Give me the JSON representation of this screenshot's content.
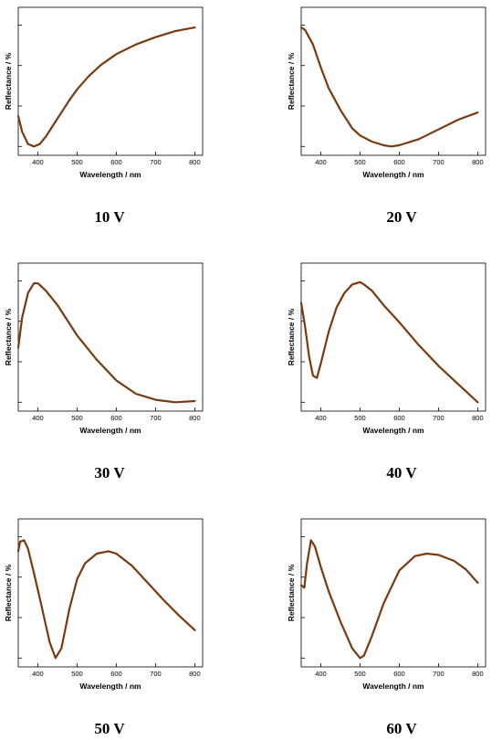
{
  "colors": {
    "curve": "#7a3a10",
    "axis": "#000000"
  },
  "chart_data": [
    {
      "type": "line",
      "caption": "10 V",
      "xlabel": "Wavelength / nm",
      "ylabel": "Reflectance / %",
      "xlim": [
        350,
        820
      ],
      "ylim": [
        0,
        1
      ],
      "xticks": [
        400,
        500,
        600,
        700,
        800
      ],
      "yticks_unlabeled": 4,
      "grid": false,
      "series": [
        {
          "x": [
            350,
            360,
            375,
            390,
            405,
            420,
            440,
            460,
            480,
            500,
            530,
            560,
            600,
            650,
            700,
            750,
            800
          ],
          "y": [
            0.25,
            0.12,
            0.02,
            0.0,
            0.02,
            0.08,
            0.18,
            0.28,
            0.38,
            0.47,
            0.58,
            0.67,
            0.76,
            0.84,
            0.9,
            0.95,
            0.98
          ]
        }
      ]
    },
    {
      "type": "line",
      "caption": "20 V",
      "xlabel": "Wavelength / nm",
      "ylabel": "Reflectance / %",
      "xlim": [
        350,
        820
      ],
      "ylim": [
        0,
        1
      ],
      "xticks": [
        400,
        500,
        600,
        700,
        800
      ],
      "yticks_unlabeled": 4,
      "grid": false,
      "series": [
        {
          "x": [
            350,
            360,
            380,
            400,
            420,
            450,
            480,
            500,
            530,
            560,
            580,
            600,
            650,
            700,
            750,
            800
          ],
          "y": [
            0.98,
            0.96,
            0.84,
            0.65,
            0.48,
            0.3,
            0.15,
            0.09,
            0.04,
            0.01,
            0.0,
            0.01,
            0.06,
            0.14,
            0.22,
            0.28
          ]
        }
      ]
    },
    {
      "type": "line",
      "caption": "30 V",
      "xlabel": "Wavelength / nm",
      "ylabel": "Reflectance / %",
      "xlim": [
        350,
        820
      ],
      "ylim": [
        0,
        1
      ],
      "xticks": [
        400,
        500,
        600,
        700,
        800
      ],
      "yticks_unlabeled": 4,
      "grid": false,
      "series": [
        {
          "x": [
            350,
            360,
            375,
            390,
            400,
            420,
            450,
            480,
            500,
            550,
            600,
            650,
            700,
            750,
            800
          ],
          "y": [
            0.45,
            0.7,
            0.9,
            0.98,
            0.98,
            0.92,
            0.8,
            0.65,
            0.55,
            0.35,
            0.18,
            0.07,
            0.02,
            0.0,
            0.01
          ]
        }
      ]
    },
    {
      "type": "line",
      "caption": "40 V",
      "xlabel": "Wavelength / nm",
      "ylabel": "Reflectance / %",
      "xlim": [
        350,
        820
      ],
      "ylim": [
        0,
        1
      ],
      "xticks": [
        400,
        500,
        600,
        700,
        800
      ],
      "yticks_unlabeled": 4,
      "grid": false,
      "series": [
        {
          "x": [
            350,
            360,
            370,
            380,
            390,
            400,
            420,
            440,
            460,
            480,
            500,
            510,
            530,
            560,
            600,
            650,
            700,
            750,
            800
          ],
          "y": [
            0.82,
            0.62,
            0.38,
            0.22,
            0.2,
            0.32,
            0.58,
            0.78,
            0.9,
            0.97,
            0.99,
            0.97,
            0.92,
            0.8,
            0.66,
            0.47,
            0.3,
            0.15,
            0.0
          ]
        }
      ]
    },
    {
      "type": "line",
      "caption": "50 V",
      "xlabel": "Wavelength / nm",
      "ylabel": "Reflectance / %",
      "xlim": [
        350,
        820
      ],
      "ylim": [
        0,
        1
      ],
      "xticks": [
        400,
        500,
        600,
        700,
        800
      ],
      "yticks_unlabeled": 4,
      "grid": false,
      "series": [
        {
          "x": [
            350,
            355,
            365,
            375,
            390,
            410,
            430,
            445,
            460,
            480,
            500,
            520,
            550,
            580,
            600,
            640,
            680,
            720,
            760,
            800
          ],
          "y": [
            0.88,
            0.96,
            0.97,
            0.9,
            0.7,
            0.42,
            0.13,
            0.0,
            0.08,
            0.4,
            0.65,
            0.78,
            0.86,
            0.88,
            0.86,
            0.76,
            0.62,
            0.48,
            0.35,
            0.23
          ]
        }
      ]
    },
    {
      "type": "line",
      "caption": "60 V",
      "xlabel": "Wavelength / nm",
      "ylabel": "Reflectance / %",
      "xlim": [
        350,
        820
      ],
      "ylim": [
        0,
        1
      ],
      "xticks": [
        400,
        500,
        600,
        700,
        800
      ],
      "yticks_unlabeled": 4,
      "grid": false,
      "series": [
        {
          "x": [
            350,
            358,
            365,
            375,
            385,
            400,
            420,
            450,
            480,
            500,
            510,
            530,
            560,
            600,
            640,
            670,
            700,
            740,
            770,
            800
          ],
          "y": [
            0.6,
            0.58,
            0.78,
            0.97,
            0.92,
            0.75,
            0.55,
            0.3,
            0.08,
            0.0,
            0.02,
            0.18,
            0.45,
            0.72,
            0.84,
            0.86,
            0.85,
            0.8,
            0.73,
            0.62
          ]
        }
      ]
    }
  ]
}
